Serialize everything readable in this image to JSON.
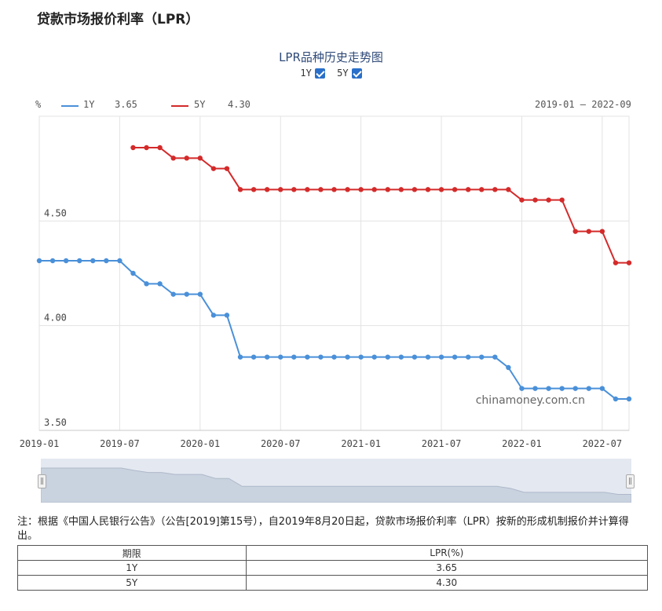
{
  "page": {
    "title": "贷款市场报价利率（LPR）",
    "note": "注：根据《中国人民银行公告》（公告[2019]第15号），自2019年8月20日起，贷款市场报价利率（LPR）按新的形成机制报价并计算得出。"
  },
  "chart_data": {
    "type": "line",
    "title": "LPR品种历史走势图",
    "toggles": [
      {
        "label": "1Y",
        "checked": true
      },
      {
        "label": "5Y",
        "checked": true
      }
    ],
    "unit_label": "%",
    "date_range": "2019-01 – 2022-09",
    "watermark": "chinamoney.com.cn",
    "ylim": [
      3.5,
      5.0
    ],
    "yticks": [
      "4.50",
      "4.00",
      "3.50"
    ],
    "xticks": [
      "2019-01",
      "2019-07",
      "2020-01",
      "2020-07",
      "2021-01",
      "2021-07",
      "2022-01",
      "2022-07"
    ],
    "grid": true,
    "legend_position": "top-left",
    "series": [
      {
        "name": "1Y",
        "latest": "3.65",
        "color": "#4a90d9",
        "points": [
          [
            "2019-01",
            4.31
          ],
          [
            "2019-02",
            4.31
          ],
          [
            "2019-03",
            4.31
          ],
          [
            "2019-04",
            4.31
          ],
          [
            "2019-05",
            4.31
          ],
          [
            "2019-06",
            4.31
          ],
          [
            "2019-07",
            4.31
          ],
          [
            "2019-08",
            4.25
          ],
          [
            "2019-09",
            4.2
          ],
          [
            "2019-10",
            4.2
          ],
          [
            "2019-11",
            4.15
          ],
          [
            "2019-12",
            4.15
          ],
          [
            "2020-01",
            4.15
          ],
          [
            "2020-02",
            4.05
          ],
          [
            "2020-03",
            4.05
          ],
          [
            "2020-04",
            3.85
          ],
          [
            "2020-05",
            3.85
          ],
          [
            "2020-06",
            3.85
          ],
          [
            "2020-07",
            3.85
          ],
          [
            "2020-08",
            3.85
          ],
          [
            "2020-09",
            3.85
          ],
          [
            "2020-10",
            3.85
          ],
          [
            "2020-11",
            3.85
          ],
          [
            "2020-12",
            3.85
          ],
          [
            "2021-01",
            3.85
          ],
          [
            "2021-02",
            3.85
          ],
          [
            "2021-03",
            3.85
          ],
          [
            "2021-04",
            3.85
          ],
          [
            "2021-05",
            3.85
          ],
          [
            "2021-06",
            3.85
          ],
          [
            "2021-07",
            3.85
          ],
          [
            "2021-08",
            3.85
          ],
          [
            "2021-09",
            3.85
          ],
          [
            "2021-10",
            3.85
          ],
          [
            "2021-11",
            3.85
          ],
          [
            "2021-12",
            3.8
          ],
          [
            "2022-01",
            3.7
          ],
          [
            "2022-02",
            3.7
          ],
          [
            "2022-03",
            3.7
          ],
          [
            "2022-04",
            3.7
          ],
          [
            "2022-05",
            3.7
          ],
          [
            "2022-06",
            3.7
          ],
          [
            "2022-07",
            3.7
          ],
          [
            "2022-08",
            3.65
          ],
          [
            "2022-09",
            3.65
          ]
        ]
      },
      {
        "name": "5Y",
        "latest": "4.30",
        "color": "#d42a2a",
        "points": [
          [
            "2019-08",
            4.85
          ],
          [
            "2019-09",
            4.85
          ],
          [
            "2019-10",
            4.85
          ],
          [
            "2019-11",
            4.8
          ],
          [
            "2019-12",
            4.8
          ],
          [
            "2020-01",
            4.8
          ],
          [
            "2020-02",
            4.75
          ],
          [
            "2020-03",
            4.75
          ],
          [
            "2020-04",
            4.65
          ],
          [
            "2020-05",
            4.65
          ],
          [
            "2020-06",
            4.65
          ],
          [
            "2020-07",
            4.65
          ],
          [
            "2020-08",
            4.65
          ],
          [
            "2020-09",
            4.65
          ],
          [
            "2020-10",
            4.65
          ],
          [
            "2020-11",
            4.65
          ],
          [
            "2020-12",
            4.65
          ],
          [
            "2021-01",
            4.65
          ],
          [
            "2021-02",
            4.65
          ],
          [
            "2021-03",
            4.65
          ],
          [
            "2021-04",
            4.65
          ],
          [
            "2021-05",
            4.65
          ],
          [
            "2021-06",
            4.65
          ],
          [
            "2021-07",
            4.65
          ],
          [
            "2021-08",
            4.65
          ],
          [
            "2021-09",
            4.65
          ],
          [
            "2021-10",
            4.65
          ],
          [
            "2021-11",
            4.65
          ],
          [
            "2021-12",
            4.65
          ],
          [
            "2022-01",
            4.6
          ],
          [
            "2022-02",
            4.6
          ],
          [
            "2022-03",
            4.6
          ],
          [
            "2022-04",
            4.6
          ],
          [
            "2022-05",
            4.45
          ],
          [
            "2022-06",
            4.45
          ],
          [
            "2022-07",
            4.45
          ],
          [
            "2022-08",
            4.3
          ],
          [
            "2022-09",
            4.3
          ]
        ]
      }
    ]
  },
  "table": {
    "headers": [
      "期限",
      "LPR(%)"
    ],
    "rows": [
      [
        "1Y",
        "3.65"
      ],
      [
        "5Y",
        "4.30"
      ]
    ]
  }
}
